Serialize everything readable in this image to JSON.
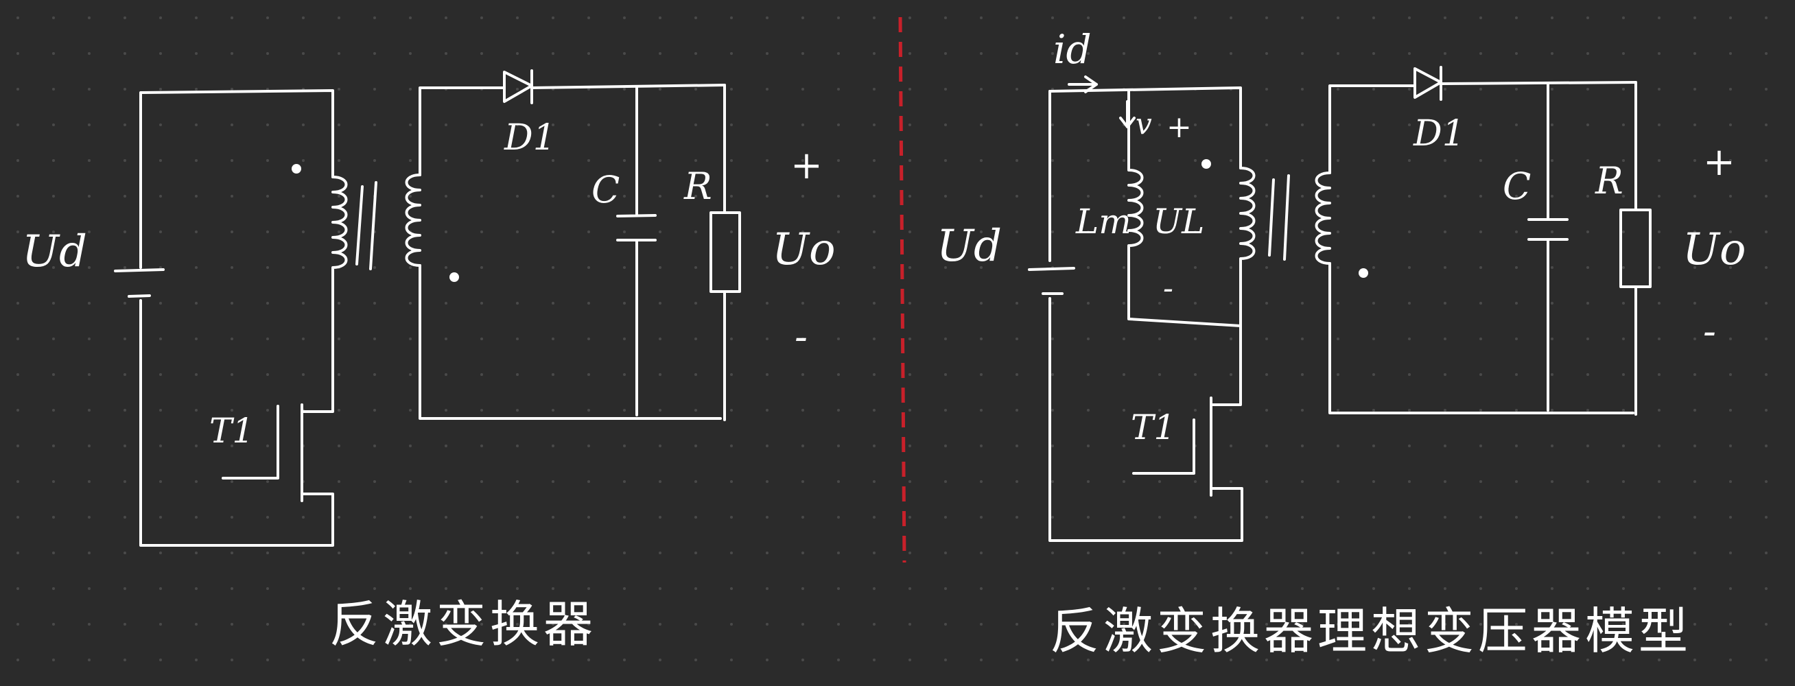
{
  "background_color": "#2b2b2b",
  "ink_color": "#ffffff",
  "divider_color": "#c8202a",
  "left": {
    "source_label": "Ud",
    "switch_label": "T1",
    "diode_label": "D1",
    "capacitor_label": "C",
    "resistor_label": "R",
    "output_label": "Uo",
    "plus_sign": "+",
    "minus_sign": "-",
    "caption": "反激变换器"
  },
  "right": {
    "current_label": "id",
    "voltage_label": "v",
    "voltage_plus": "+",
    "magnetizing_label": "Lm",
    "leakage_label": "UL",
    "leakage_minus": "-",
    "source_label": "Ud",
    "switch_label": "T1",
    "diode_label": "D1",
    "capacitor_label": "C",
    "resistor_label": "R",
    "output_label": "Uo",
    "plus_sign": "+",
    "minus_sign": "-",
    "caption": "反激变换器理想变压器模型"
  }
}
